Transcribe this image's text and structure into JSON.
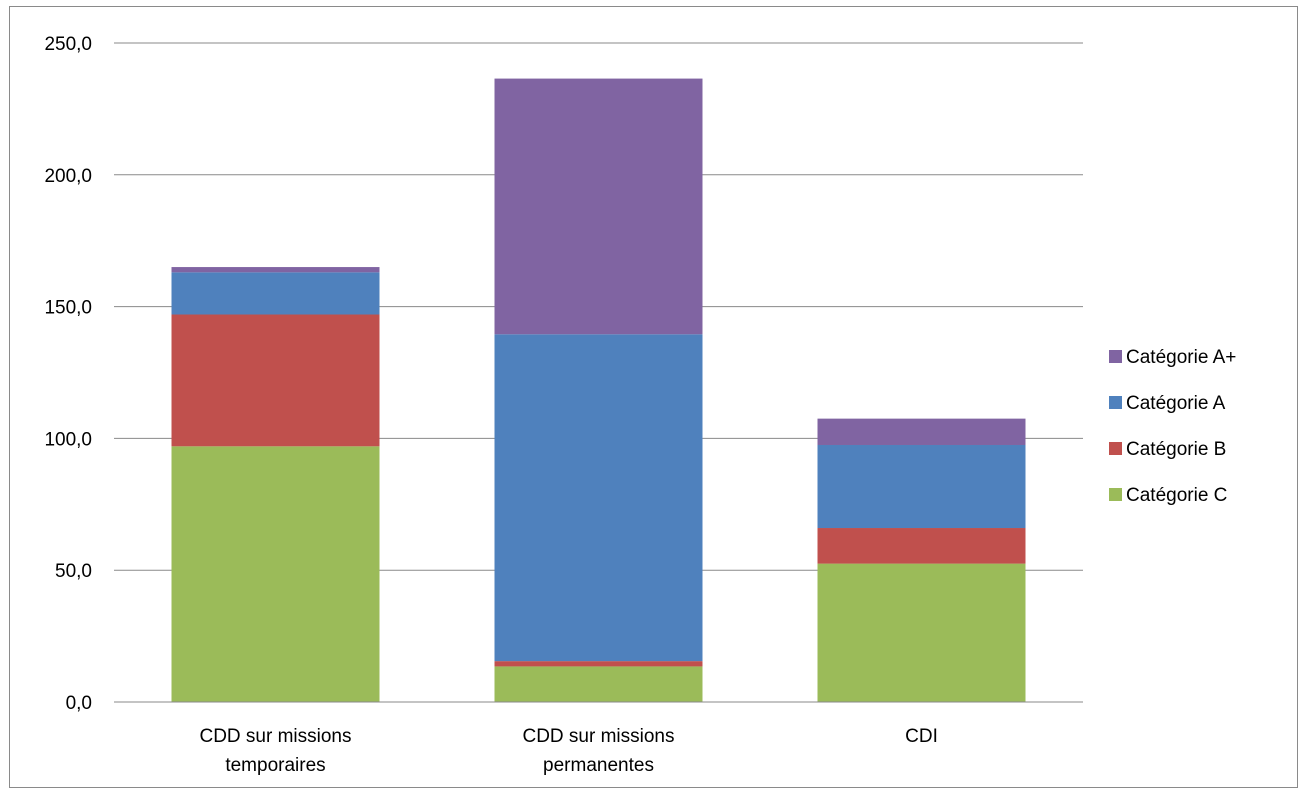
{
  "chart_data": {
    "type": "bar",
    "stacked": true,
    "categories": [
      [
        "CDD sur missions",
        "temporaires"
      ],
      [
        "CDD sur missions",
        "permanentes"
      ],
      [
        "CDI"
      ]
    ],
    "series": [
      {
        "name": "Catégorie C",
        "color": "#9BBB59",
        "values": [
          97.0,
          13.5,
          52.5
        ]
      },
      {
        "name": "Catégorie B",
        "color": "#C0504D",
        "values": [
          50.0,
          2.0,
          13.5
        ]
      },
      {
        "name": "Catégorie A",
        "color": "#4F81BD",
        "values": [
          16.0,
          124.0,
          31.5
        ]
      },
      {
        "name": "Catégorie A+",
        "color": "#8064A2",
        "values": [
          2.0,
          97.0,
          10.0
        ]
      }
    ],
    "ylim": [
      0,
      250
    ],
    "yticks": [
      "0,0",
      "50,0",
      "100,0",
      "150,0",
      "200,0",
      "250,0"
    ],
    "ytick_values": [
      0,
      50,
      100,
      150,
      200,
      250
    ],
    "grid": true,
    "legend_position": "right",
    "legend_order": [
      "Catégorie A+",
      "Catégorie A",
      "Catégorie B",
      "Catégorie C"
    ]
  }
}
